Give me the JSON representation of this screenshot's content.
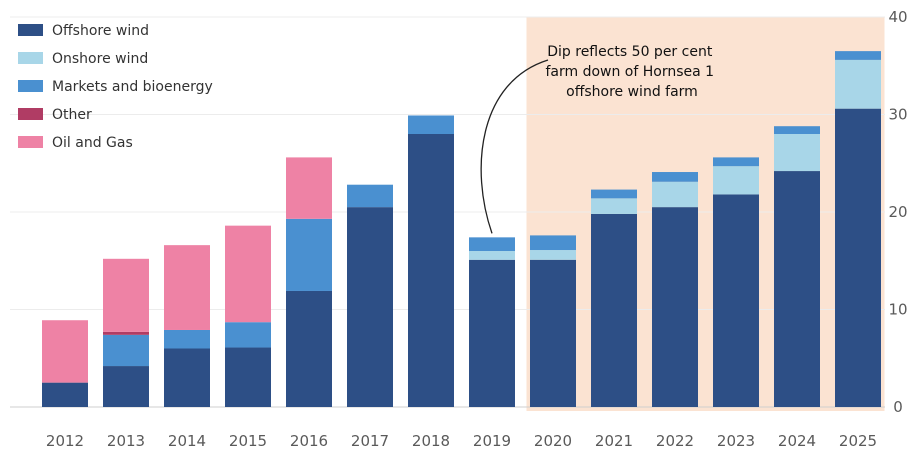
{
  "chart_data": {
    "type": "bar",
    "stacked": true,
    "categories": [
      "2012",
      "2013",
      "2014",
      "2015",
      "2016",
      "2017",
      "2018",
      "2019",
      "2020",
      "2021",
      "2022",
      "2023",
      "2024",
      "2025"
    ],
    "series": [
      {
        "name": "Offshore wind",
        "color": "#2d4f86",
        "values": [
          2.5,
          4.2,
          6.0,
          6.1,
          11.9,
          20.5,
          28.0,
          15.1,
          15.1,
          19.8,
          20.5,
          21.8,
          24.2,
          30.6
        ]
      },
      {
        "name": "Onshore wind",
        "color": "#a8d6e8",
        "values": [
          0,
          0,
          0,
          0,
          0,
          0,
          0,
          0.9,
          1.0,
          1.6,
          2.6,
          2.9,
          3.8,
          5.0
        ]
      },
      {
        "name": "Markets and bioenergy",
        "color": "#4a90d0",
        "values": [
          0,
          3.2,
          1.9,
          2.6,
          7.4,
          2.3,
          1.9,
          1.4,
          1.5,
          0.9,
          1.0,
          0.9,
          0.8,
          0.9
        ]
      },
      {
        "name": "Other",
        "color": "#b03c64",
        "values": [
          0,
          0.3,
          0,
          0,
          0,
          0,
          0,
          0,
          0,
          0,
          0,
          0,
          0,
          0
        ]
      },
      {
        "name": "Oil and Gas",
        "color": "#ee82a5",
        "values": [
          6.4,
          7.5,
          8.7,
          9.9,
          6.3,
          0,
          0,
          0,
          0,
          0,
          0,
          0,
          0,
          0
        ]
      }
    ],
    "ylim": [
      0,
      40
    ],
    "yticks": [
      0,
      10,
      20,
      30,
      40
    ],
    "y_axis_side": "right",
    "grid": true,
    "legend_position": "top-left",
    "highlight_range": [
      "2020",
      "2025"
    ],
    "highlight_color": "#fbe3d2",
    "annotation": {
      "lines": [
        "Dip reflects 50 per cent",
        "farm down of Hornsea 1",
        "offshore wind farm"
      ],
      "points_to": "2019"
    }
  }
}
